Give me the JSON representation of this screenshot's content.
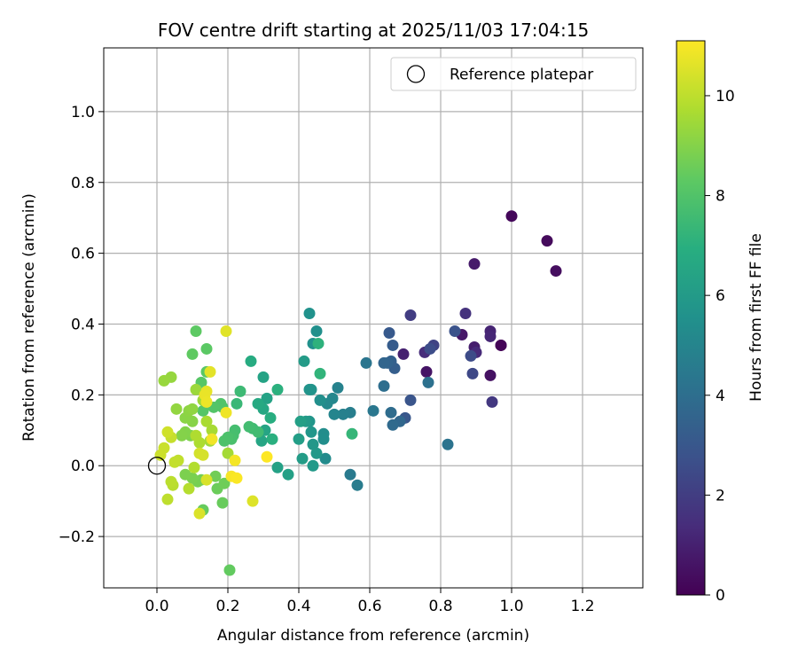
{
  "chart_data": {
    "type": "scatter",
    "title": "FOV centre drift starting at 2025/11/03 17:04:15",
    "xlabel": "Angular distance from reference (arcmin)",
    "ylabel": "Rotation from reference (arcmin)",
    "xlim": [
      -0.15,
      1.37
    ],
    "ylim": [
      -0.345,
      1.18
    ],
    "xticks": [
      0.0,
      0.2,
      0.4,
      0.6,
      0.8,
      1.0,
      1.2
    ],
    "xtick_labels": [
      "0.0",
      "0.2",
      "0.4",
      "0.6",
      "0.8",
      "1.0",
      "1.2"
    ],
    "yticks": [
      -0.2,
      0.0,
      0.2,
      0.4,
      0.6,
      0.8,
      1.0
    ],
    "ytick_labels": [
      "−0.2",
      "0.0",
      "0.2",
      "0.4",
      "0.6",
      "0.8",
      "1.0"
    ],
    "grid": true,
    "legend": {
      "label": "Reference platepar",
      "placement": "top-right"
    },
    "reference_point": {
      "x": 0.0,
      "y": 0.0
    },
    "colorbar": {
      "label": "Hours from first FF file",
      "range": [
        0,
        11.1
      ],
      "ticks": [
        0,
        2,
        4,
        6,
        8,
        10
      ],
      "tick_labels": [
        "0",
        "2",
        "4",
        "6",
        "8",
        "10"
      ],
      "colormap": "viridis"
    },
    "points": [
      {
        "x": 0.97,
        "y": 0.34,
        "h": 0.0
      },
      {
        "x": 0.97,
        "y": 0.34,
        "h": 0.1
      },
      {
        "x": 1.0,
        "y": 0.705,
        "h": 0.2
      },
      {
        "x": 1.1,
        "y": 0.635,
        "h": 0.3
      },
      {
        "x": 1.125,
        "y": 0.55,
        "h": 0.4
      },
      {
        "x": 0.94,
        "y": 0.255,
        "h": 0.5
      },
      {
        "x": 0.76,
        "y": 0.265,
        "h": 0.6
      },
      {
        "x": 0.86,
        "y": 0.37,
        "h": 0.7
      },
      {
        "x": 0.895,
        "y": 0.57,
        "h": 0.8
      },
      {
        "x": 0.895,
        "y": 0.335,
        "h": 0.9
      },
      {
        "x": 0.695,
        "y": 0.315,
        "h": 1.0
      },
      {
        "x": 0.94,
        "y": 0.38,
        "h": 1.1
      },
      {
        "x": 0.94,
        "y": 0.365,
        "h": 1.2
      },
      {
        "x": 0.9,
        "y": 0.32,
        "h": 1.3
      },
      {
        "x": 0.755,
        "y": 0.32,
        "h": 1.4
      },
      {
        "x": 0.87,
        "y": 0.43,
        "h": 1.6
      },
      {
        "x": 0.945,
        "y": 0.18,
        "h": 1.8
      },
      {
        "x": 0.715,
        "y": 0.425,
        "h": 2.0
      },
      {
        "x": 0.78,
        "y": 0.34,
        "h": 2.2
      },
      {
        "x": 0.89,
        "y": 0.26,
        "h": 2.4
      },
      {
        "x": 0.885,
        "y": 0.31,
        "h": 2.5
      },
      {
        "x": 0.77,
        "y": 0.33,
        "h": 2.6
      },
      {
        "x": 0.84,
        "y": 0.38,
        "h": 2.8
      },
      {
        "x": 0.715,
        "y": 0.185,
        "h": 2.9
      },
      {
        "x": 0.7,
        "y": 0.135,
        "h": 3.0
      },
      {
        "x": 0.655,
        "y": 0.375,
        "h": 3.1
      },
      {
        "x": 0.665,
        "y": 0.34,
        "h": 3.2
      },
      {
        "x": 0.67,
        "y": 0.275,
        "h": 3.3
      },
      {
        "x": 0.66,
        "y": 0.295,
        "h": 3.4
      },
      {
        "x": 0.65,
        "y": 0.29,
        "h": 3.5
      },
      {
        "x": 0.64,
        "y": 0.29,
        "h": 3.6
      },
      {
        "x": 0.685,
        "y": 0.125,
        "h": 3.7
      },
      {
        "x": 0.665,
        "y": 0.115,
        "h": 3.8
      },
      {
        "x": 0.66,
        "y": 0.15,
        "h": 3.9
      },
      {
        "x": 0.64,
        "y": 0.225,
        "h": 4.0
      },
      {
        "x": 0.765,
        "y": 0.235,
        "h": 4.1
      },
      {
        "x": 0.82,
        "y": 0.06,
        "h": 4.2
      },
      {
        "x": 0.59,
        "y": 0.29,
        "h": 4.3
      },
      {
        "x": 0.61,
        "y": 0.155,
        "h": 4.4
      },
      {
        "x": 0.545,
        "y": -0.025,
        "h": 4.5
      },
      {
        "x": 0.565,
        "y": -0.055,
        "h": 4.6
      },
      {
        "x": 0.545,
        "y": 0.15,
        "h": 4.7
      },
      {
        "x": 0.525,
        "y": 0.145,
        "h": 4.8
      },
      {
        "x": 0.51,
        "y": 0.22,
        "h": 4.9
      },
      {
        "x": 0.5,
        "y": 0.145,
        "h": 5.0
      },
      {
        "x": 0.495,
        "y": 0.19,
        "h": 5.1
      },
      {
        "x": 0.48,
        "y": 0.175,
        "h": 5.2
      },
      {
        "x": 0.475,
        "y": 0.02,
        "h": 5.3
      },
      {
        "x": 0.47,
        "y": 0.09,
        "h": 5.35
      },
      {
        "x": 0.47,
        "y": 0.075,
        "h": 5.4
      },
      {
        "x": 0.46,
        "y": 0.185,
        "h": 5.45
      },
      {
        "x": 0.45,
        "y": 0.38,
        "h": 5.5
      },
      {
        "x": 0.44,
        "y": 0.345,
        "h": 5.55
      },
      {
        "x": 0.43,
        "y": 0.43,
        "h": 5.6
      },
      {
        "x": 0.435,
        "y": 0.215,
        "h": 5.65
      },
      {
        "x": 0.43,
        "y": 0.215,
        "h": 5.7
      },
      {
        "x": 0.43,
        "y": 0.125,
        "h": 5.75
      },
      {
        "x": 0.435,
        "y": 0.095,
        "h": 5.8
      },
      {
        "x": 0.44,
        "y": 0.06,
        "h": 5.85
      },
      {
        "x": 0.45,
        "y": 0.035,
        "h": 5.9
      },
      {
        "x": 0.44,
        "y": 0.0,
        "h": 5.95
      },
      {
        "x": 0.42,
        "y": 0.125,
        "h": 6.0
      },
      {
        "x": 0.415,
        "y": 0.295,
        "h": 6.05
      },
      {
        "x": 0.41,
        "y": 0.02,
        "h": 6.1
      },
      {
        "x": 0.4,
        "y": 0.075,
        "h": 6.15
      },
      {
        "x": 0.405,
        "y": 0.125,
        "h": 6.2
      },
      {
        "x": 0.37,
        "y": -0.025,
        "h": 6.25
      },
      {
        "x": 0.34,
        "y": -0.005,
        "h": 6.3
      },
      {
        "x": 0.31,
        "y": 0.19,
        "h": 6.35
      },
      {
        "x": 0.3,
        "y": 0.25,
        "h": 6.4
      },
      {
        "x": 0.305,
        "y": 0.1,
        "h": 6.45
      },
      {
        "x": 0.295,
        "y": 0.07,
        "h": 6.5
      },
      {
        "x": 0.3,
        "y": 0.16,
        "h": 6.6
      },
      {
        "x": 0.285,
        "y": 0.175,
        "h": 6.7
      },
      {
        "x": 0.265,
        "y": 0.295,
        "h": 6.8
      },
      {
        "x": 0.32,
        "y": 0.135,
        "h": 6.9
      },
      {
        "x": 0.325,
        "y": 0.075,
        "h": 7.0
      },
      {
        "x": 0.34,
        "y": 0.215,
        "h": 7.05
      },
      {
        "x": 0.455,
        "y": 0.345,
        "h": 7.1
      },
      {
        "x": 0.46,
        "y": 0.26,
        "h": 7.2
      },
      {
        "x": 0.55,
        "y": 0.09,
        "h": 7.3
      },
      {
        "x": 0.225,
        "y": 0.175,
        "h": 7.4
      },
      {
        "x": 0.235,
        "y": 0.21,
        "h": 7.5
      },
      {
        "x": 0.27,
        "y": 0.105,
        "h": 7.55
      },
      {
        "x": 0.285,
        "y": 0.095,
        "h": 7.6
      },
      {
        "x": 0.26,
        "y": 0.11,
        "h": 7.65
      },
      {
        "x": 0.22,
        "y": 0.1,
        "h": 7.7
      },
      {
        "x": 0.215,
        "y": 0.085,
        "h": 7.75
      },
      {
        "x": 0.21,
        "y": 0.075,
        "h": 7.8
      },
      {
        "x": 0.2,
        "y": 0.08,
        "h": 7.85
      },
      {
        "x": 0.19,
        "y": 0.07,
        "h": 7.9
      },
      {
        "x": 0.185,
        "y": 0.165,
        "h": 7.95
      },
      {
        "x": 0.18,
        "y": 0.175,
        "h": 8.0
      },
      {
        "x": 0.16,
        "y": 0.165,
        "h": 8.05
      },
      {
        "x": 0.13,
        "y": 0.155,
        "h": 8.1
      },
      {
        "x": 0.125,
        "y": 0.235,
        "h": 8.15
      },
      {
        "x": 0.14,
        "y": 0.265,
        "h": 8.2
      },
      {
        "x": 0.14,
        "y": 0.33,
        "h": 8.25
      },
      {
        "x": 0.11,
        "y": 0.38,
        "h": 8.3
      },
      {
        "x": 0.1,
        "y": 0.315,
        "h": 8.35
      },
      {
        "x": 0.205,
        "y": -0.295,
        "h": 8.4
      },
      {
        "x": 0.13,
        "y": -0.125,
        "h": 8.45
      },
      {
        "x": 0.185,
        "y": -0.105,
        "h": 8.5
      },
      {
        "x": 0.17,
        "y": -0.065,
        "h": 8.55
      },
      {
        "x": 0.19,
        "y": -0.05,
        "h": 8.6
      },
      {
        "x": 0.165,
        "y": -0.03,
        "h": 8.65
      },
      {
        "x": 0.125,
        "y": -0.04,
        "h": 8.7
      },
      {
        "x": 0.115,
        "y": -0.045,
        "h": 8.75
      },
      {
        "x": 0.1,
        "y": -0.035,
        "h": 8.8
      },
      {
        "x": 0.08,
        "y": -0.025,
        "h": 8.85
      },
      {
        "x": 0.095,
        "y": 0.085,
        "h": 8.9
      },
      {
        "x": 0.08,
        "y": 0.095,
        "h": 8.95
      },
      {
        "x": 0.07,
        "y": 0.085,
        "h": 9.0
      },
      {
        "x": 0.1,
        "y": 0.125,
        "h": 9.05
      },
      {
        "x": 0.08,
        "y": 0.135,
        "h": 9.1
      },
      {
        "x": 0.09,
        "y": 0.155,
        "h": 9.15
      },
      {
        "x": 0.1,
        "y": 0.16,
        "h": 9.2
      },
      {
        "x": 0.055,
        "y": 0.16,
        "h": 9.25
      },
      {
        "x": 0.04,
        "y": 0.25,
        "h": 9.3
      },
      {
        "x": 0.02,
        "y": 0.24,
        "h": 9.35
      },
      {
        "x": 0.11,
        "y": 0.215,
        "h": 9.4
      },
      {
        "x": 0.13,
        "y": 0.185,
        "h": 9.45
      },
      {
        "x": 0.15,
        "y": 0.07,
        "h": 9.5
      },
      {
        "x": 0.2,
        "y": 0.035,
        "h": 9.55
      },
      {
        "x": 0.155,
        "y": 0.1,
        "h": 9.6
      },
      {
        "x": 0.14,
        "y": 0.125,
        "h": 9.65
      },
      {
        "x": 0.12,
        "y": 0.065,
        "h": 9.7
      },
      {
        "x": 0.11,
        "y": 0.085,
        "h": 9.75
      },
      {
        "x": 0.105,
        "y": -0.005,
        "h": 9.8
      },
      {
        "x": 0.09,
        "y": -0.065,
        "h": 9.85
      },
      {
        "x": 0.045,
        "y": -0.055,
        "h": 9.9
      },
      {
        "x": 0.04,
        "y": -0.045,
        "h": 9.95
      },
      {
        "x": 0.03,
        "y": -0.095,
        "h": 10.0
      },
      {
        "x": 0.06,
        "y": 0.015,
        "h": 10.05
      },
      {
        "x": 0.05,
        "y": 0.01,
        "h": 10.1
      },
      {
        "x": 0.04,
        "y": 0.08,
        "h": 10.15
      },
      {
        "x": 0.02,
        "y": 0.05,
        "h": 10.2
      },
      {
        "x": 0.01,
        "y": 0.03,
        "h": 10.25
      },
      {
        "x": 0.03,
        "y": 0.095,
        "h": 10.3
      },
      {
        "x": 0.12,
        "y": 0.035,
        "h": 10.35
      },
      {
        "x": 0.13,
        "y": 0.03,
        "h": 10.4
      },
      {
        "x": 0.14,
        "y": -0.04,
        "h": 10.45
      },
      {
        "x": 0.12,
        "y": -0.135,
        "h": 10.5
      },
      {
        "x": 0.27,
        "y": -0.1,
        "h": 10.55
      },
      {
        "x": 0.195,
        "y": 0.38,
        "h": 10.6
      },
      {
        "x": 0.15,
        "y": 0.265,
        "h": 10.65
      },
      {
        "x": 0.14,
        "y": 0.21,
        "h": 10.7
      },
      {
        "x": 0.135,
        "y": 0.2,
        "h": 10.75
      },
      {
        "x": 0.14,
        "y": 0.18,
        "h": 10.8
      },
      {
        "x": 0.195,
        "y": 0.15,
        "h": 10.85
      },
      {
        "x": 0.155,
        "y": 0.075,
        "h": 10.9
      },
      {
        "x": 0.22,
        "y": 0.015,
        "h": 10.95
      },
      {
        "x": 0.21,
        "y": -0.03,
        "h": 11.0
      },
      {
        "x": 0.225,
        "y": -0.035,
        "h": 11.05
      },
      {
        "x": 0.31,
        "y": 0.025,
        "h": 11.1
      }
    ]
  }
}
